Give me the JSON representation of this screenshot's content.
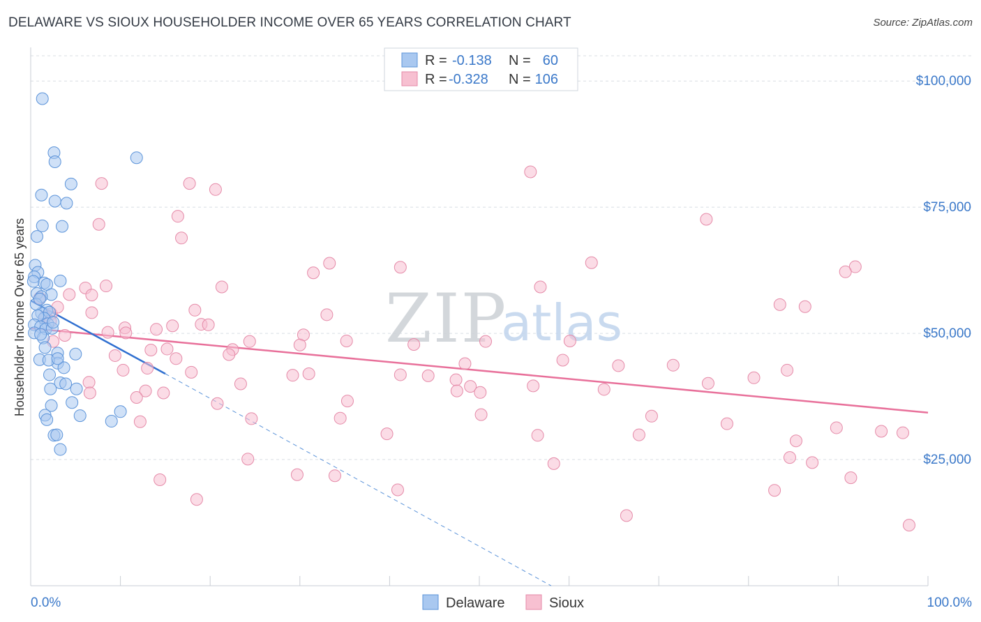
{
  "title": "DELAWARE VS SIOUX HOUSEHOLDER INCOME OVER 65 YEARS CORRELATION CHART",
  "source": "Source: ZipAtlas.com",
  "watermark": {
    "zip": "ZIP",
    "atlas": "atlas"
  },
  "colors": {
    "delaware_fill": "#a9c8f0",
    "delaware_stroke": "#5b93d9",
    "delaware_line": "#2f6fd0",
    "sioux_fill": "#f7c0d1",
    "sioux_stroke": "#e58aa8",
    "sioux_line": "#e8709a",
    "tick_text": "#3a78c9",
    "grid": "#d8dde3"
  },
  "legend": {
    "rows": [
      {
        "series": "Delaware",
        "r_label": "R =",
        "r_value": "-0.138",
        "n_label": "N =",
        "n_value": "60"
      },
      {
        "series": "Sioux",
        "r_label": "R =",
        "r_value": "-0.328",
        "n_label": "N =",
        "n_value": "106"
      }
    ]
  },
  "chart_data": {
    "type": "scatter",
    "title": "DELAWARE VS SIOUX HOUSEHOLDER INCOME OVER 65 YEARS CORRELATION CHART",
    "xlabel": "",
    "ylabel": "Householder Income Over 65 years",
    "xlim": [
      0,
      100
    ],
    "ylim": [
      0,
      105000
    ],
    "x_tick_labels": [
      "0.0%",
      "100.0%"
    ],
    "y_ticks": [
      {
        "value": 25000,
        "label": "$25,000"
      },
      {
        "value": 50000,
        "label": "$50,000"
      },
      {
        "value": 75000,
        "label": "$75,000"
      },
      {
        "value": 100000,
        "label": "$100,000"
      }
    ],
    "grid": true,
    "legend_position": "top-center",
    "series": [
      {
        "name": "Delaware",
        "r": -0.138,
        "n": 60,
        "trend": {
          "x": [
            0,
            15
          ],
          "y": [
            56500,
            42000
          ],
          "dashed_extension": {
            "x": [
              15,
              58
            ],
            "y": [
              42000,
              0
            ]
          }
        },
        "points": [
          [
            1.3,
            96500
          ],
          [
            2.6,
            85800
          ],
          [
            2.7,
            84000
          ],
          [
            11.8,
            84800
          ],
          [
            4.5,
            79600
          ],
          [
            1.2,
            77400
          ],
          [
            2.7,
            76200
          ],
          [
            4.0,
            75800
          ],
          [
            1.3,
            71300
          ],
          [
            3.5,
            71200
          ],
          [
            0.7,
            69200
          ],
          [
            0.5,
            63500
          ],
          [
            0.8,
            62100
          ],
          [
            0.4,
            61200
          ],
          [
            0.3,
            60300
          ],
          [
            3.3,
            60400
          ],
          [
            1.5,
            60000
          ],
          [
            1.8,
            59700
          ],
          [
            0.7,
            57900
          ],
          [
            2.3,
            57700
          ],
          [
            1.2,
            57300
          ],
          [
            1.8,
            54600
          ],
          [
            1.2,
            54000
          ],
          [
            2.1,
            54200
          ],
          [
            1.5,
            53000
          ],
          [
            0.8,
            53500
          ],
          [
            1.9,
            51900
          ],
          [
            0.4,
            51700
          ],
          [
            1.1,
            51300
          ],
          [
            1.7,
            50900
          ],
          [
            0.4,
            50100
          ],
          [
            1.4,
            49100
          ],
          [
            1.6,
            47200
          ],
          [
            3.0,
            46100
          ],
          [
            5.0,
            45900
          ],
          [
            1.0,
            44800
          ],
          [
            3.0,
            44100
          ],
          [
            3.7,
            43200
          ],
          [
            2.1,
            41800
          ],
          [
            3.3,
            40200
          ],
          [
            3.9,
            40000
          ],
          [
            5.1,
            39000
          ],
          [
            2.2,
            39000
          ],
          [
            4.6,
            36300
          ],
          [
            2.3,
            35700
          ],
          [
            10.0,
            34500
          ],
          [
            1.6,
            33800
          ],
          [
            5.5,
            33700
          ],
          [
            1.8,
            32900
          ],
          [
            9.0,
            32600
          ],
          [
            2.6,
            29800
          ],
          [
            2.9,
            29900
          ],
          [
            3.3,
            27000
          ],
          [
            2.0,
            44700
          ],
          [
            1.1,
            49800
          ],
          [
            0.6,
            55800
          ],
          [
            2.4,
            51000
          ],
          [
            1.0,
            56800
          ],
          [
            3.0,
            45000
          ],
          [
            2.5,
            52200
          ]
        ]
      },
      {
        "name": "Sioux",
        "r": -0.328,
        "n": 106,
        "trend": {
          "x": [
            0,
            100
          ],
          "y": [
            51000,
            34300
          ]
        },
        "points": [
          [
            55.7,
            82000
          ],
          [
            7.9,
            79700
          ],
          [
            17.7,
            79700
          ],
          [
            20.6,
            78500
          ],
          [
            16.4,
            73200
          ],
          [
            75.3,
            72600
          ],
          [
            7.6,
            71600
          ],
          [
            16.8,
            68900
          ],
          [
            33.3,
            63900
          ],
          [
            62.5,
            64000
          ],
          [
            41.2,
            63100
          ],
          [
            91.9,
            63200
          ],
          [
            31.5,
            62000
          ],
          [
            90.8,
            62200
          ],
          [
            8.4,
            59400
          ],
          [
            21.3,
            59200
          ],
          [
            56.8,
            59200
          ],
          [
            6.1,
            59000
          ],
          [
            4.3,
            57700
          ],
          [
            1.0,
            57000
          ],
          [
            83.5,
            55700
          ],
          [
            86.3,
            55300
          ],
          [
            2.3,
            53900
          ],
          [
            6.8,
            54100
          ],
          [
            18.3,
            54600
          ],
          [
            1.6,
            53300
          ],
          [
            33.0,
            53700
          ],
          [
            2.2,
            52400
          ],
          [
            19.0,
            51800
          ],
          [
            19.8,
            51700
          ],
          [
            15.8,
            51500
          ],
          [
            10.5,
            51100
          ],
          [
            8.6,
            50200
          ],
          [
            10.6,
            50100
          ],
          [
            3.8,
            49600
          ],
          [
            30.4,
            49700
          ],
          [
            35.2,
            48500
          ],
          [
            24.4,
            48400
          ],
          [
            30.0,
            47700
          ],
          [
            42.7,
            47800
          ],
          [
            50.7,
            48400
          ],
          [
            60.1,
            48500
          ],
          [
            2.5,
            48400
          ],
          [
            22.5,
            46800
          ],
          [
            15.2,
            46900
          ],
          [
            13.4,
            46700
          ],
          [
            9.4,
            45600
          ],
          [
            22.1,
            45800
          ],
          [
            16.2,
            45000
          ],
          [
            59.3,
            44700
          ],
          [
            17.9,
            42300
          ],
          [
            10.3,
            42700
          ],
          [
            65.5,
            43600
          ],
          [
            71.6,
            43700
          ],
          [
            13.0,
            43100
          ],
          [
            31.0,
            42000
          ],
          [
            41.2,
            41800
          ],
          [
            29.2,
            41700
          ],
          [
            44.3,
            41600
          ],
          [
            48.4,
            44000
          ],
          [
            84.3,
            42700
          ],
          [
            80.6,
            41200
          ],
          [
            75.5,
            40100
          ],
          [
            23.4,
            40000
          ],
          [
            47.4,
            40800
          ],
          [
            56.0,
            39600
          ],
          [
            49.0,
            39500
          ],
          [
            63.9,
            38900
          ],
          [
            50.1,
            38300
          ],
          [
            6.5,
            40300
          ],
          [
            14.8,
            38200
          ],
          [
            12.8,
            38600
          ],
          [
            6.6,
            38200
          ],
          [
            11.8,
            37300
          ],
          [
            35.3,
            36600
          ],
          [
            20.8,
            36100
          ],
          [
            50.2,
            33900
          ],
          [
            69.2,
            33600
          ],
          [
            34.5,
            33200
          ],
          [
            24.6,
            33100
          ],
          [
            12.2,
            32500
          ],
          [
            77.6,
            32100
          ],
          [
            56.5,
            29800
          ],
          [
            39.7,
            30100
          ],
          [
            67.8,
            29900
          ],
          [
            89.8,
            31300
          ],
          [
            94.8,
            30600
          ],
          [
            97.2,
            30300
          ],
          [
            85.3,
            28700
          ],
          [
            24.2,
            25100
          ],
          [
            84.6,
            25400
          ],
          [
            87.1,
            24400
          ],
          [
            58.3,
            24200
          ],
          [
            29.7,
            22000
          ],
          [
            33.9,
            21800
          ],
          [
            91.4,
            21400
          ],
          [
            14.4,
            21000
          ],
          [
            40.9,
            19000
          ],
          [
            82.9,
            18900
          ],
          [
            18.5,
            17100
          ],
          [
            66.4,
            13900
          ],
          [
            97.9,
            12000
          ],
          [
            3.0,
            55200
          ],
          [
            6.8,
            57600
          ],
          [
            14.0,
            50800
          ],
          [
            47.5,
            38600
          ]
        ]
      }
    ]
  },
  "bottom_legend": {
    "items": [
      "Delaware",
      "Sioux"
    ]
  }
}
